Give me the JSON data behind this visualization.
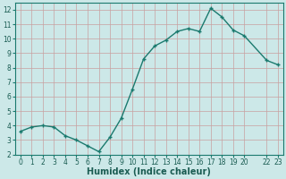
{
  "x": [
    0,
    1,
    2,
    3,
    4,
    5,
    6,
    7,
    8,
    9,
    10,
    11,
    12,
    13,
    14,
    15,
    16,
    17,
    18,
    19,
    20,
    22,
    23
  ],
  "y": [
    3.6,
    3.9,
    4.0,
    3.9,
    3.3,
    3.0,
    2.6,
    2.2,
    3.2,
    4.5,
    6.5,
    8.6,
    9.5,
    9.9,
    10.5,
    10.7,
    10.5,
    12.1,
    11.5,
    10.6,
    10.2,
    8.5,
    8.2
  ],
  "line_color": "#1a7a6e",
  "marker_color": "#1a7a6e",
  "bg_color": "#cce8e8",
  "grid_color": "#c8a0a0",
  "xlabel": "Humidex (Indice chaleur)",
  "xlim": [
    -0.5,
    23.5
  ],
  "ylim": [
    2,
    12.5
  ],
  "yticks": [
    2,
    3,
    4,
    5,
    6,
    7,
    8,
    9,
    10,
    11,
    12
  ],
  "font_color": "#1a5c52",
  "axis_color": "#1a7a6e",
  "xlabel_fontsize": 7,
  "tick_fontsize": 5.5,
  "linewidth": 1.0,
  "markersize": 2.8
}
